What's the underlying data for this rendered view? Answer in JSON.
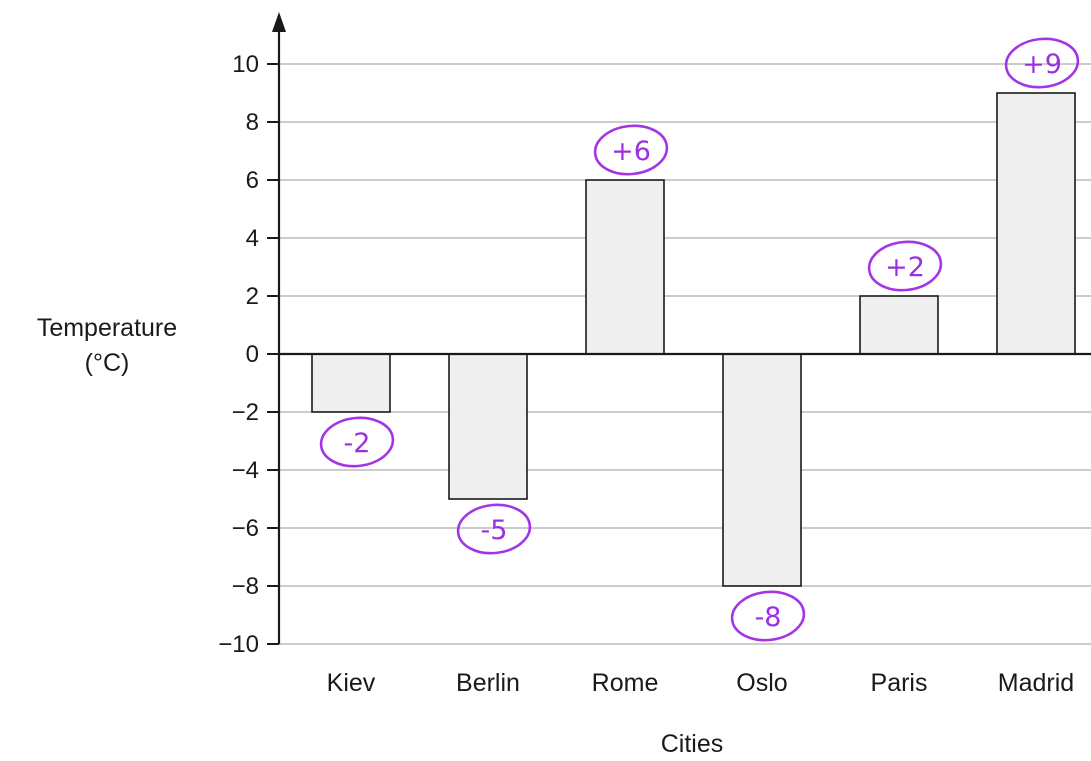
{
  "chart_data": {
    "type": "bar",
    "categories": [
      "Kiev",
      "Berlin",
      "Rome",
      "Oslo",
      "Paris",
      "Madrid"
    ],
    "values": [
      -2,
      -5,
      6,
      -8,
      2,
      9
    ],
    "ylabel": "Temperature",
    "ylabel_unit": "(°C)",
    "xlabel": "Cities",
    "ylim": [
      -10,
      11
    ],
    "yticks": [
      10,
      8,
      6,
      4,
      2,
      0,
      -2,
      -4,
      -6,
      -8,
      -10
    ],
    "ytick_labels": [
      "10",
      "8",
      "6",
      "4",
      "2",
      "0",
      "−2",
      "−4",
      "−6",
      "−8",
      "−10"
    ],
    "grid": true,
    "annotations": [
      "-2",
      "-5",
      "+6",
      "-8",
      "+2",
      "+9"
    ],
    "colors": {
      "bar_fill": "#efefef",
      "bar_stroke": "#1a1a1a",
      "grid": "#9a9a9a",
      "annotation": "#a335e6"
    }
  }
}
